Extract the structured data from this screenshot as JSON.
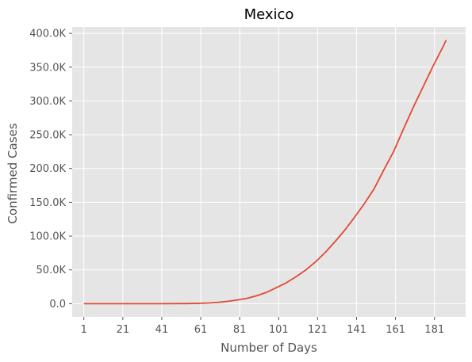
{
  "chart_data": {
    "type": "line",
    "title": "Mexico",
    "xlabel": "Number of Days",
    "ylabel": "Confirmed Cases",
    "xlim": [
      -5,
      197
    ],
    "ylim": [
      -19500,
      409500
    ],
    "x_ticks": [
      1,
      21,
      41,
      61,
      81,
      101,
      121,
      141,
      161,
      181
    ],
    "y_ticks": [
      0,
      50000,
      100000,
      150000,
      200000,
      250000,
      300000,
      350000,
      400000
    ],
    "y_tick_labels": [
      "0.0",
      "50.0K",
      "100.0K",
      "150.0K",
      "200.0K",
      "250.0K",
      "300.0K",
      "350.0K",
      "400.0K"
    ],
    "grid": true,
    "background": "#e5e5e5",
    "grid_color": "#ffffff",
    "series": [
      {
        "color": "#e24a33",
        "x": [
          1,
          20,
          40,
          55,
          60,
          65,
          70,
          75,
          80,
          85,
          90,
          95,
          100,
          105,
          110,
          115,
          120,
          125,
          130,
          135,
          140,
          145,
          150,
          155,
          160,
          165,
          170,
          175,
          180,
          185,
          187
        ],
        "values": [
          0,
          0,
          0,
          200,
          500,
          1000,
          2000,
          3500,
          5500,
          8000,
          12000,
          17000,
          24000,
          31000,
          40000,
          50000,
          62000,
          76000,
          92000,
          109000,
          128000,
          148000,
          170000,
          198000,
          225000,
          258000,
          290000,
          320000,
          350000,
          378000,
          390000
        ]
      }
    ]
  }
}
